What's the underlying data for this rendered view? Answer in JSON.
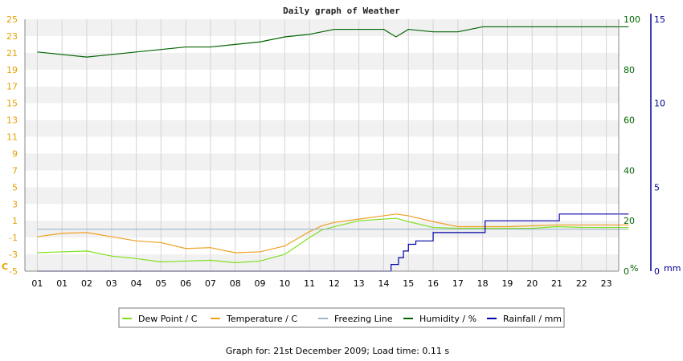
{
  "chart_data": {
    "type": "line",
    "title": "Daily graph of Weather",
    "footer": "Graph for: 21st December 2009; Load time: 0.11 s",
    "x_ticks": [
      "01",
      "01",
      "02",
      "03",
      "04",
      "05",
      "06",
      "07",
      "08",
      "09",
      "10",
      "11",
      "12",
      "13",
      "14",
      "15",
      "16",
      "17",
      "18",
      "19",
      "20",
      "21",
      "22",
      "23"
    ],
    "axes": {
      "left": {
        "unit": "C",
        "ylim": [
          -5,
          25
        ],
        "ticks": [
          -5,
          -3,
          -1,
          1,
          3,
          5,
          7,
          9,
          11,
          13,
          15,
          17,
          19,
          21,
          23,
          25
        ],
        "color": "#e6a000"
      },
      "right1": {
        "unit": "%",
        "ylim": [
          0,
          100
        ],
        "ticks": [
          0,
          20,
          40,
          60,
          80,
          100
        ],
        "color": "#006400"
      },
      "right2": {
        "unit": "mm",
        "ylim": [
          0,
          15
        ],
        "ticks": [
          0,
          5,
          10,
          15
        ],
        "color": "#000099"
      }
    },
    "grid": true,
    "series": [
      {
        "name": "Dew Point / C",
        "axis": "left",
        "color": "#80e020",
        "points": [
          [
            0,
            -2.8
          ],
          [
            1,
            -2.7
          ],
          [
            2,
            -2.6
          ],
          [
            3,
            -3.2
          ],
          [
            4,
            -3.5
          ],
          [
            5,
            -3.9
          ],
          [
            6,
            -3.8
          ],
          [
            7,
            -3.7
          ],
          [
            8,
            -4.0
          ],
          [
            9,
            -3.8
          ],
          [
            10,
            -3.0
          ],
          [
            11,
            -1.0
          ],
          [
            11.5,
            -0.1
          ],
          [
            12,
            0.3
          ],
          [
            13,
            1.0
          ],
          [
            14,
            1.2
          ],
          [
            14.5,
            1.3
          ],
          [
            15,
            0.9
          ],
          [
            16,
            0.2
          ],
          [
            17,
            0.1
          ],
          [
            18,
            0.1
          ],
          [
            19,
            0.1
          ],
          [
            20,
            0.1
          ],
          [
            21,
            0.3
          ],
          [
            22,
            0.2
          ],
          [
            23,
            0.2
          ],
          [
            23.9,
            0.2
          ]
        ]
      },
      {
        "name": "Temperature / C",
        "axis": "left",
        "color": "#f0a020",
        "points": [
          [
            0,
            -0.9
          ],
          [
            1,
            -0.5
          ],
          [
            2,
            -0.4
          ],
          [
            3,
            -0.9
          ],
          [
            4,
            -1.4
          ],
          [
            5,
            -1.6
          ],
          [
            6,
            -2.3
          ],
          [
            7,
            -2.2
          ],
          [
            8,
            -2.8
          ],
          [
            9,
            -2.7
          ],
          [
            10,
            -2.0
          ],
          [
            11,
            -0.3
          ],
          [
            11.5,
            0.4
          ],
          [
            12,
            0.8
          ],
          [
            13,
            1.2
          ],
          [
            14,
            1.6
          ],
          [
            14.5,
            1.8
          ],
          [
            15,
            1.6
          ],
          [
            16,
            0.9
          ],
          [
            17,
            0.3
          ],
          [
            18,
            0.3
          ],
          [
            19,
            0.3
          ],
          [
            20,
            0.4
          ],
          [
            21,
            0.5
          ],
          [
            22,
            0.5
          ],
          [
            23,
            0.5
          ],
          [
            23.9,
            0.5
          ]
        ]
      },
      {
        "name": "Freezing Line",
        "axis": "left",
        "color": "#9bb6c8",
        "points": [
          [
            0,
            0
          ],
          [
            23.9,
            0
          ]
        ]
      },
      {
        "name": "Humidity / %",
        "axis": "right1",
        "color": "#006400",
        "points": [
          [
            0,
            87
          ],
          [
            1,
            86
          ],
          [
            2,
            85
          ],
          [
            3,
            86
          ],
          [
            4,
            87
          ],
          [
            5,
            88
          ],
          [
            6,
            89
          ],
          [
            7,
            89
          ],
          [
            8,
            90
          ],
          [
            9,
            91
          ],
          [
            10,
            93
          ],
          [
            11,
            94
          ],
          [
            12,
            96
          ],
          [
            13,
            96
          ],
          [
            14,
            96
          ],
          [
            14.5,
            93
          ],
          [
            15,
            96
          ],
          [
            16,
            95
          ],
          [
            17,
            95
          ],
          [
            18,
            97
          ],
          [
            19,
            97
          ],
          [
            20,
            97
          ],
          [
            21,
            97
          ],
          [
            22,
            97
          ],
          [
            23,
            97
          ],
          [
            23.9,
            97
          ]
        ]
      },
      {
        "name": "Rainfall / mm",
        "axis": "right2",
        "color": "#0000aa",
        "step": true,
        "points": [
          [
            0,
            0
          ],
          [
            14,
            0
          ],
          [
            14.3,
            0.4
          ],
          [
            14.6,
            0.8
          ],
          [
            14.8,
            1.2
          ],
          [
            15,
            1.6
          ],
          [
            15.3,
            1.8
          ],
          [
            16,
            2.3
          ],
          [
            18,
            2.3
          ],
          [
            18.1,
            3.0
          ],
          [
            21,
            3.0
          ],
          [
            21.1,
            3.4
          ],
          [
            23.9,
            3.4
          ]
        ]
      }
    ]
  }
}
